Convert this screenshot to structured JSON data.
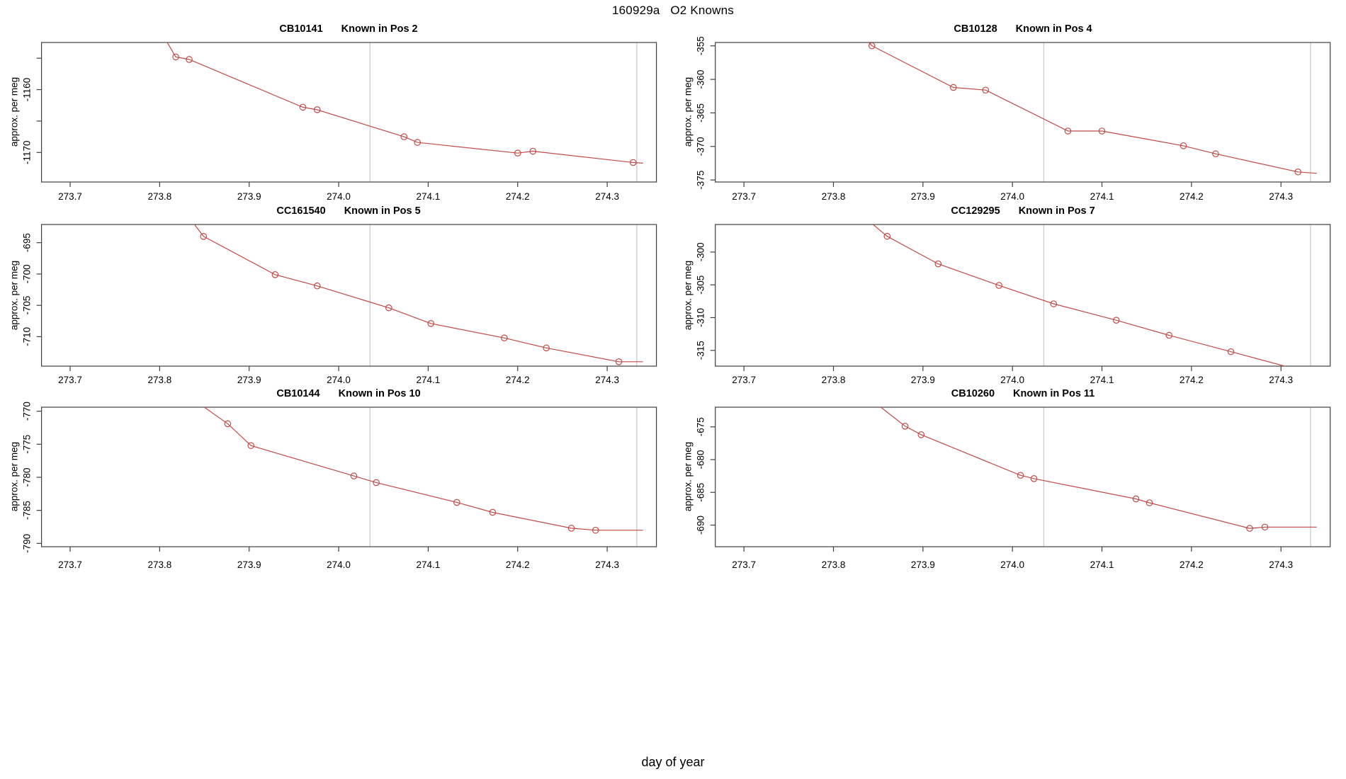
{
  "header": {
    "title": "160929a   O2 Knowns"
  },
  "footer": {
    "xlabel": "day of year"
  },
  "chart_data": {
    "type": "line",
    "title": "160929a   O2 Knowns",
    "xlabel": "day of year",
    "ylabel": "approx. per meg",
    "grid": "off",
    "legend": "none",
    "marker": "open-circle",
    "line_color": "#c24a46",
    "vline_color": "#cfcfcf",
    "axis_color": "#3f3f3f",
    "xlim": [
      273.668,
      274.355
    ],
    "x_ticks": [
      "273.7",
      "273.8",
      "273.9",
      "274.0",
      "274.1",
      "274.2",
      "274.3"
    ],
    "x_tick_values": [
      273.7,
      273.8,
      273.9,
      274.0,
      274.1,
      274.2,
      274.3
    ],
    "vlines": [
      274.035,
      274.333
    ],
    "plots": [
      {
        "id": "CB10141",
        "pos": "Known in Pos 2",
        "ylabel": "approx. per meg",
        "ylim": [
          -1174.7,
          -1152.5
        ],
        "yticks": [
          [
            -1155,
            ""
          ],
          [
            -1160,
            "-1160"
          ],
          [
            -1165,
            ""
          ],
          [
            -1170,
            "-1170"
          ]
        ],
        "lead": [
          273.79,
          -1148.0
        ],
        "points": [
          [
            273.818,
            -1154.8
          ],
          [
            273.833,
            -1155.2
          ],
          [
            273.96,
            -1162.8
          ],
          [
            273.976,
            -1163.2
          ],
          [
            274.073,
            -1167.5
          ],
          [
            274.088,
            -1168.4
          ],
          [
            274.2,
            -1170.1
          ],
          [
            274.217,
            -1169.8
          ],
          [
            274.329,
            -1171.6
          ]
        ],
        "tail": [
          274.34,
          -1171.7
        ]
      },
      {
        "id": "CB10128",
        "pos": "Known in Pos 4",
        "ylabel": "approx. per meg",
        "ylim": [
          -375.3,
          -354.5
        ],
        "yticks": [
          [
            -355,
            "-355"
          ],
          [
            -360,
            "-360"
          ],
          [
            -365,
            "-365"
          ],
          [
            -370,
            "-370"
          ],
          [
            -375,
            "-375"
          ]
        ],
        "lead": [
          273.815,
          -351.0
        ],
        "points": [
          [
            273.843,
            -355.0
          ],
          [
            273.934,
            -361.2
          ],
          [
            273.97,
            -361.6
          ],
          [
            274.062,
            -367.7
          ],
          [
            274.1,
            -367.7
          ],
          [
            274.191,
            -369.9
          ],
          [
            274.227,
            -371.1
          ],
          [
            274.319,
            -373.8
          ]
        ],
        "tail": [
          274.34,
          -374.0
        ]
      },
      {
        "id": "CC161540",
        "pos": "Known in Pos 5",
        "ylabel": "approx. per meg",
        "ylim": [
          -714.7,
          -692.1
        ],
        "yticks": [
          [
            -695,
            "-695"
          ],
          [
            -700,
            "-700"
          ],
          [
            -705,
            "-705"
          ],
          [
            -710,
            "-710"
          ]
        ],
        "lead": [
          273.825,
          -689.5
        ],
        "points": [
          [
            273.849,
            -694.0
          ],
          [
            273.929,
            -700.1
          ],
          [
            273.976,
            -701.9
          ],
          [
            274.056,
            -705.4
          ],
          [
            274.103,
            -707.9
          ],
          [
            274.185,
            -710.2
          ],
          [
            274.232,
            -711.8
          ],
          [
            274.313,
            -714.0
          ]
        ],
        "tail": [
          274.34,
          -714.0
        ]
      },
      {
        "id": "CC129295",
        "pos": "Known in Pos 7",
        "ylabel": "approx. per meg",
        "ylim": [
          -317.4,
          -295.8
        ],
        "yticks": [
          [
            -300,
            "-300"
          ],
          [
            -305,
            "-305"
          ],
          [
            -310,
            "-310"
          ],
          [
            -315,
            "-315"
          ]
        ],
        "lead": [
          273.82,
          -293.0
        ],
        "points": [
          [
            273.86,
            -297.6
          ],
          [
            273.917,
            -301.8
          ],
          [
            273.985,
            -305.1
          ],
          [
            274.046,
            -307.9
          ],
          [
            274.116,
            -310.4
          ],
          [
            274.175,
            -312.7
          ],
          [
            274.244,
            -315.2
          ]
        ],
        "tail": [
          274.315,
          -317.8
        ]
      },
      {
        "id": "CB10144",
        "pos": "Known in Pos 10",
        "ylabel": "approx. per meg",
        "ylim": [
          -790.5,
          -769.4
        ],
        "yticks": [
          [
            -770,
            "-770"
          ],
          [
            -775,
            "-775"
          ],
          [
            -780,
            "-780"
          ],
          [
            -785,
            "-785"
          ],
          [
            -790,
            "-790"
          ]
        ],
        "lead": [
          273.83,
          -767.5
        ],
        "points": [
          [
            273.876,
            -771.9
          ],
          [
            273.902,
            -775.2
          ],
          [
            274.017,
            -779.8
          ],
          [
            274.042,
            -780.8
          ],
          [
            274.132,
            -783.8
          ],
          [
            274.172,
            -785.3
          ],
          [
            274.26,
            -787.7
          ],
          [
            274.287,
            -788.0
          ]
        ],
        "tail": [
          274.34,
          -788.0
        ]
      },
      {
        "id": "CB10260",
        "pos": "Known in Pos 11",
        "ylabel": "approx. per meg",
        "ylim": [
          -693.3,
          -672.0
        ],
        "yticks": [
          [
            -675,
            "-675"
          ],
          [
            -680,
            "-680"
          ],
          [
            -685,
            "-685"
          ],
          [
            -690,
            "-690"
          ]
        ],
        "lead": [
          273.82,
          -668.5
        ],
        "points": [
          [
            273.88,
            -674.9
          ],
          [
            273.898,
            -676.2
          ],
          [
            274.009,
            -682.4
          ],
          [
            274.024,
            -682.9
          ],
          [
            274.138,
            -686.0
          ],
          [
            274.153,
            -686.6
          ],
          [
            274.265,
            -690.5
          ],
          [
            274.282,
            -690.3
          ]
        ],
        "tail": [
          274.34,
          -690.3
        ]
      }
    ]
  }
}
